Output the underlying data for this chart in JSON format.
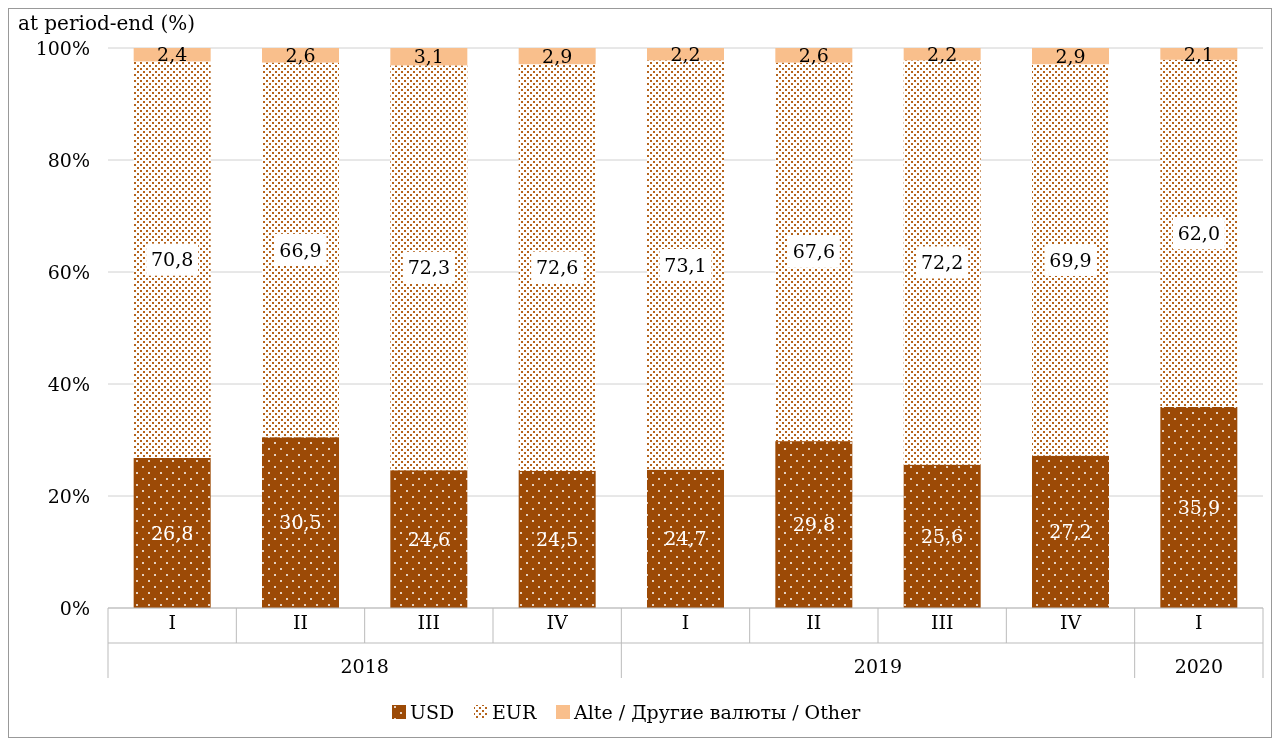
{
  "chart_data": {
    "type": "bar",
    "title": "at period-end (%)",
    "stacked": true,
    "categories": [
      "I",
      "II",
      "III",
      "IV",
      "I",
      "II",
      "III",
      "IV",
      "I"
    ],
    "annotations": [
      "2018",
      "2019",
      "2020"
    ],
    "series": [
      {
        "name": "USD",
        "color": "#9c4a06",
        "values": [
          26.8,
          30.5,
          24.6,
          24.5,
          24.7,
          29.8,
          25.6,
          27.2,
          35.9
        ],
        "value_labels": [
          "26,8",
          "30,5",
          "24,6",
          "24,5",
          "24,7",
          "29,8",
          "25,6",
          "27,2",
          "35,9"
        ]
      },
      {
        "name": "EUR",
        "color": "#b5641c",
        "values": [
          70.8,
          66.9,
          72.3,
          72.6,
          73.1,
          67.6,
          72.2,
          69.9,
          62.0
        ],
        "value_labels": [
          "70,8",
          "66,9",
          "72,3",
          "72,6",
          "73,1",
          "67,6",
          "72,2",
          "69,9",
          "62,0"
        ]
      },
      {
        "name": "Alte / Другие валюты / Other",
        "color": "#f9bf8c",
        "values": [
          2.4,
          2.6,
          3.1,
          2.9,
          2.2,
          2.6,
          2.2,
          2.9,
          2.1
        ],
        "value_labels": [
          "2,4",
          "2,6",
          "3,1",
          "2,9",
          "2,2",
          "2,6",
          "2,2",
          "2,9",
          "2,1"
        ]
      }
    ],
    "ylim": [
      0,
      100
    ],
    "yticks": [
      {
        "value": 0,
        "label": "0%"
      },
      {
        "value": 20,
        "label": "20%"
      },
      {
        "value": 40,
        "label": "40%"
      },
      {
        "value": 60,
        "label": "60%"
      },
      {
        "value": 80,
        "label": "80%"
      },
      {
        "value": 100,
        "label": "100%"
      }
    ],
    "grid": "y",
    "legend": "bottom"
  }
}
